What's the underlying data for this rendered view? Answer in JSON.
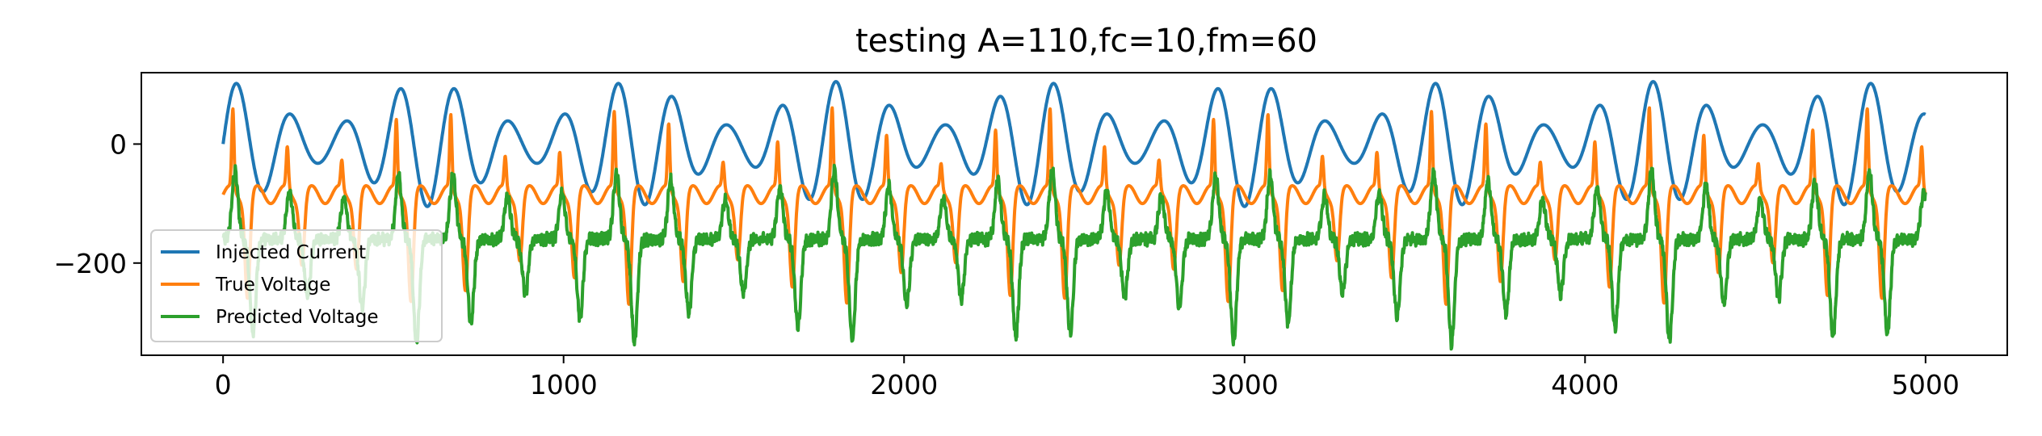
{
  "chart_data": {
    "type": "line",
    "title": "testing A=110,fc=10,fm=60",
    "xlabel": "",
    "ylabel": "",
    "xlim": [
      -240,
      5240
    ],
    "ylim": [
      -355,
      120
    ],
    "x_ticks": [
      0,
      1000,
      2000,
      3000,
      4000,
      5000
    ],
    "x_tick_labels": [
      "0",
      "1000",
      "2000",
      "3000",
      "4000",
      "5000"
    ],
    "y_ticks": [
      0,
      -200
    ],
    "y_tick_labels": [
      "0",
      "−200"
    ],
    "grid": false,
    "legend_position": "lower-left",
    "x_range": [
      0,
      5000
    ],
    "n_points": 5001,
    "series": [
      {
        "name": "Injected Current",
        "color": "#1f77b4",
        "generator": "A*sin(2*pi*t/T1)*(0.65+0.35*cos(2*pi*t/T2))",
        "params": {
          "A": 105,
          "T1": 160,
          "T2": 600
        }
      },
      {
        "name": "True Voltage",
        "color": "#ff7f0e",
        "generator": "spike response to current",
        "params": {
          "base": -85,
          "spike_max": 50,
          "min": -280,
          "period": 160
        }
      },
      {
        "name": "Predicted Voltage",
        "color": "#2ca02c",
        "generator": "smoothed noisy voltage",
        "params": {
          "base": -160,
          "max": -45,
          "min": -335,
          "noise": 12
        }
      }
    ]
  }
}
